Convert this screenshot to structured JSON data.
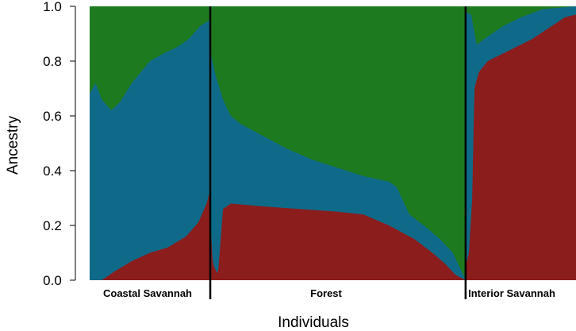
{
  "chart_data": {
    "type": "area",
    "subtype": "stacked-ancestry-proportions",
    "title": "",
    "xlabel": "Individuals",
    "ylabel": "Ancestry",
    "ylim": [
      0,
      1
    ],
    "y_ticks": [
      "0.0",
      "0.2",
      "0.4",
      "0.6",
      "0.8",
      "1.0"
    ],
    "colors": {
      "red": "#8b1d1d",
      "blue": "#0f6a8a",
      "green": "#1e7a1e"
    },
    "groups": [
      {
        "name": "Coastal Savannah",
        "x_range": [
          0,
          0.248
        ],
        "red_boundary": [
          [
            0.0,
            0.0
          ],
          [
            0.1,
            0.0
          ],
          [
            0.2,
            0.03
          ],
          [
            0.35,
            0.07
          ],
          [
            0.5,
            0.1
          ],
          [
            0.65,
            0.12
          ],
          [
            0.8,
            0.16
          ],
          [
            0.9,
            0.21
          ],
          [
            0.97,
            0.28
          ],
          [
            1.0,
            0.33
          ]
        ],
        "blue_boundary": [
          [
            0.0,
            0.68
          ],
          [
            0.05,
            0.72
          ],
          [
            0.1,
            0.66
          ],
          [
            0.18,
            0.62
          ],
          [
            0.25,
            0.65
          ],
          [
            0.35,
            0.72
          ],
          [
            0.5,
            0.8
          ],
          [
            0.62,
            0.83
          ],
          [
            0.72,
            0.85
          ],
          [
            0.82,
            0.88
          ],
          [
            0.92,
            0.93
          ],
          [
            1.0,
            0.95
          ]
        ]
      },
      {
        "name": "Forest",
        "x_range": [
          0.248,
          0.773
        ],
        "red_boundary": [
          [
            0.0,
            0.22
          ],
          [
            0.01,
            0.06
          ],
          [
            0.03,
            0.02
          ],
          [
            0.05,
            0.26
          ],
          [
            0.08,
            0.28
          ],
          [
            0.2,
            0.27
          ],
          [
            0.35,
            0.26
          ],
          [
            0.5,
            0.25
          ],
          [
            0.6,
            0.24
          ],
          [
            0.7,
            0.2
          ],
          [
            0.8,
            0.15
          ],
          [
            0.87,
            0.1
          ],
          [
            0.92,
            0.06
          ],
          [
            0.96,
            0.02
          ],
          [
            1.0,
            0.0
          ]
        ],
        "blue_boundary": [
          [
            0.0,
            0.84
          ],
          [
            0.02,
            0.75
          ],
          [
            0.05,
            0.66
          ],
          [
            0.08,
            0.6
          ],
          [
            0.12,
            0.57
          ],
          [
            0.2,
            0.53
          ],
          [
            0.3,
            0.48
          ],
          [
            0.4,
            0.44
          ],
          [
            0.5,
            0.41
          ],
          [
            0.6,
            0.38
          ],
          [
            0.7,
            0.36
          ],
          [
            0.73,
            0.34
          ],
          [
            0.78,
            0.24
          ],
          [
            0.85,
            0.19
          ],
          [
            0.9,
            0.15
          ],
          [
            0.95,
            0.1
          ],
          [
            1.0,
            0.0
          ]
        ]
      },
      {
        "name": "Interior Savannah",
        "x_range": [
          0.773,
          1.0
        ],
        "red_boundary": [
          [
            0.0,
            0.05
          ],
          [
            0.03,
            0.1
          ],
          [
            0.06,
            0.3
          ],
          [
            0.08,
            0.7
          ],
          [
            0.12,
            0.76
          ],
          [
            0.2,
            0.8
          ],
          [
            0.3,
            0.82
          ],
          [
            0.45,
            0.85
          ],
          [
            0.6,
            0.88
          ],
          [
            0.75,
            0.92
          ],
          [
            0.9,
            0.96
          ],
          [
            1.0,
            0.97
          ]
        ],
        "blue_boundary": [
          [
            0.0,
            0.98
          ],
          [
            0.05,
            0.97
          ],
          [
            0.1,
            0.86
          ],
          [
            0.2,
            0.89
          ],
          [
            0.35,
            0.93
          ],
          [
            0.5,
            0.96
          ],
          [
            0.7,
            0.99
          ],
          [
            1.0,
            1.0
          ]
        ]
      }
    ]
  }
}
